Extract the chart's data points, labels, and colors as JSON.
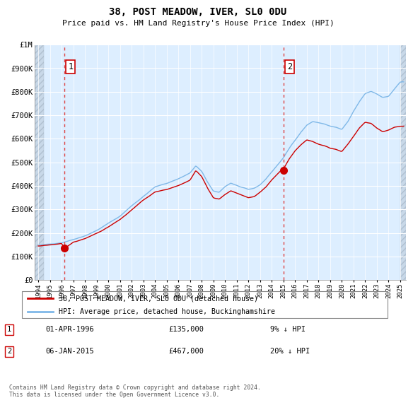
{
  "title": "38, POST MEADOW, IVER, SL0 0DU",
  "subtitle": "Price paid vs. HM Land Registry's House Price Index (HPI)",
  "legend_entry1": "38, POST MEADOW, IVER, SL0 ODU (detached house)",
  "legend_entry2": "HPI: Average price, detached house, Buckinghamshire",
  "annotation1_label": "1",
  "annotation1_date": "01-APR-1996",
  "annotation1_price": "£135,000",
  "annotation1_hpi": "9% ↓ HPI",
  "annotation2_label": "2",
  "annotation2_date": "06-JAN-2015",
  "annotation2_price": "£467,000",
  "annotation2_hpi": "20% ↓ HPI",
  "footnote": "Contains HM Land Registry data © Crown copyright and database right 2024.\nThis data is licensed under the Open Government Licence v3.0.",
  "sale1_x": 1996.25,
  "sale1_y": 135000,
  "sale2_x": 2015.02,
  "sale2_y": 467000,
  "hpi_color": "#7fb8e8",
  "price_color": "#cc0000",
  "dashed_line_color": "#dd4444",
  "ylim_min": 0,
  "ylim_max": 1000000,
  "xlim_min": 1993.7,
  "xlim_max": 2025.5,
  "plot_bg_color": "#ddeeff",
  "hatch_bg_color": "#ccccdd",
  "grid_color": "#ffffff",
  "yticks": [
    0,
    100000,
    200000,
    300000,
    400000,
    500000,
    600000,
    700000,
    800000,
    900000,
    1000000
  ],
  "ytick_labels": [
    "£0",
    "£100K",
    "£200K",
    "£300K",
    "£400K",
    "£500K",
    "£600K",
    "£700K",
    "£800K",
    "£900K",
    "£1M"
  ],
  "xticks": [
    1994,
    1995,
    1996,
    1997,
    1998,
    1999,
    2000,
    2001,
    2002,
    2003,
    2004,
    2005,
    2006,
    2007,
    2008,
    2009,
    2010,
    2011,
    2012,
    2013,
    2014,
    2015,
    2016,
    2017,
    2018,
    2019,
    2020,
    2021,
    2022,
    2023,
    2024,
    2025
  ]
}
